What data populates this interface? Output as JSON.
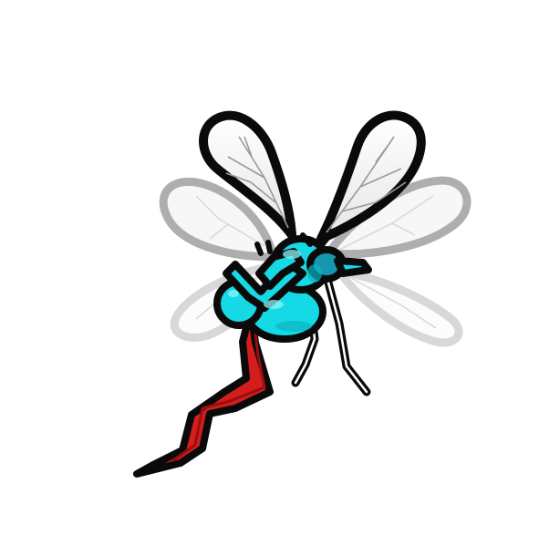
{
  "scene": {
    "subject_icon": "mosquito-sprite",
    "background_color": "#ffffff"
  },
  "colors": {
    "outline": "#0a0a0a",
    "body_cyan": "#16d9e6",
    "body_cyan_shadow": "#0bb6c4",
    "body_cyan_highlight": "#8ff3f8",
    "eye_teal": "#1697b0",
    "leg_red": "#d41e1e",
    "leg_red_dark": "#9a0f0f",
    "wing_fill": "#f4f4f4",
    "wing_vein": "#9a9a9a",
    "ghost_wing_outline": "#7a7a7a"
  }
}
